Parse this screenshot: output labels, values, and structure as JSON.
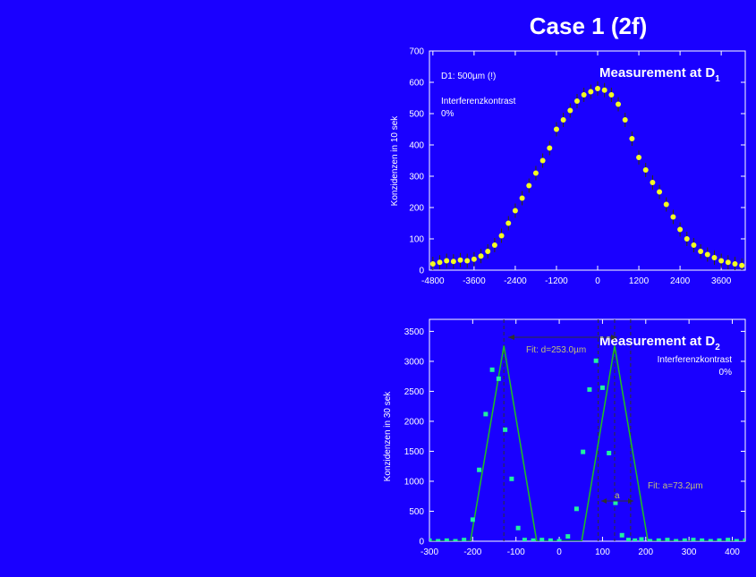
{
  "title": "Case 1 (2f)",
  "chart_data": [
    {
      "type": "scatter",
      "heading": "Measurement at D",
      "heading_sub": "1",
      "ylabel": "Konzidenzen in 10 sek",
      "annotations": [
        "D1: 500µm (!)",
        "Interferenzkontrast",
        "0%"
      ],
      "xlim": [
        -4900,
        4300
      ],
      "ylim": [
        0,
        700
      ],
      "xticks": [
        -4800,
        -3600,
        -2400,
        -1200,
        0,
        1200,
        2400,
        3600
      ],
      "yticks": [
        0,
        100,
        200,
        300,
        400,
        500,
        600,
        700
      ],
      "series": [
        {
          "x": [
            -4800,
            -4600,
            -4400,
            -4200,
            -4000,
            -3800,
            -3600,
            -3400,
            -3200,
            -3000,
            -2800,
            -2600,
            -2400,
            -2200,
            -2000,
            -1800,
            -1600,
            -1400,
            -1200,
            -1000,
            -800,
            -600,
            -400,
            -200,
            0,
            200,
            400,
            600,
            800,
            1000,
            1200,
            1400,
            1600,
            1800,
            2000,
            2200,
            2400,
            2600,
            2800,
            3000,
            3200,
            3400,
            3600,
            3800,
            4000,
            4200
          ],
          "y": [
            20,
            25,
            30,
            28,
            32,
            30,
            35,
            45,
            60,
            80,
            110,
            150,
            190,
            230,
            270,
            310,
            350,
            390,
            450,
            480,
            510,
            540,
            560,
            570,
            580,
            575,
            560,
            530,
            480,
            420,
            360,
            320,
            280,
            250,
            210,
            170,
            130,
            100,
            80,
            60,
            50,
            40,
            30,
            25,
            20,
            15
          ]
        }
      ],
      "colors": {
        "points": "#f4ff20",
        "errorbars": "#333300"
      }
    },
    {
      "type": "scatter",
      "heading": "Measurement at D",
      "heading_sub": "2",
      "ylabel": "Konzidenzen in 30 sek",
      "annotations": [
        "Interferenzkontrast",
        "0%"
      ],
      "fit_labels": [
        "Fit: d=253.0µm",
        "Fit: a=73.2µm"
      ],
      "arrow_label": "a",
      "xlim": [
        -300,
        430
      ],
      "ylim": [
        0,
        3700
      ],
      "xticks": [
        -300,
        -200,
        -100,
        0,
        100,
        200,
        300,
        400
      ],
      "yticks": [
        0,
        500,
        1000,
        1500,
        2000,
        2500,
        3000,
        3500
      ],
      "series": [
        {
          "x": [
            -300,
            -280,
            -260,
            -240,
            -220,
            -200,
            -185,
            -170,
            -155,
            -140,
            -125,
            -110,
            -95,
            -80,
            -60,
            -40,
            -20,
            0,
            20,
            40,
            55,
            70,
            85,
            100,
            115,
            130,
            145,
            160,
            175,
            190,
            210,
            230,
            250,
            270,
            290,
            310,
            330,
            350,
            370,
            390,
            410,
            430
          ],
          "y": [
            10,
            0,
            10,
            0,
            20,
            360,
            1190,
            2120,
            2860,
            2710,
            1860,
            1040,
            220,
            20,
            10,
            20,
            10,
            0,
            80,
            540,
            1490,
            2530,
            3010,
            2560,
            1470,
            640,
            100,
            20,
            10,
            30,
            0,
            10,
            20,
            0,
            10,
            20,
            10,
            0,
            10,
            20,
            0,
            10
          ]
        }
      ],
      "fit": {
        "x": [
          -300,
          -205,
          -128,
          -52,
          52,
          128,
          205,
          430
        ],
        "y": [
          0,
          0,
          3260,
          0,
          0,
          3260,
          0,
          0
        ]
      },
      "dashed_lines_x": [
        -128,
        90,
        128,
        165
      ],
      "colors": {
        "points": "#20f0a0",
        "fit": "#20c020",
        "dashed": "#303030"
      }
    }
  ]
}
